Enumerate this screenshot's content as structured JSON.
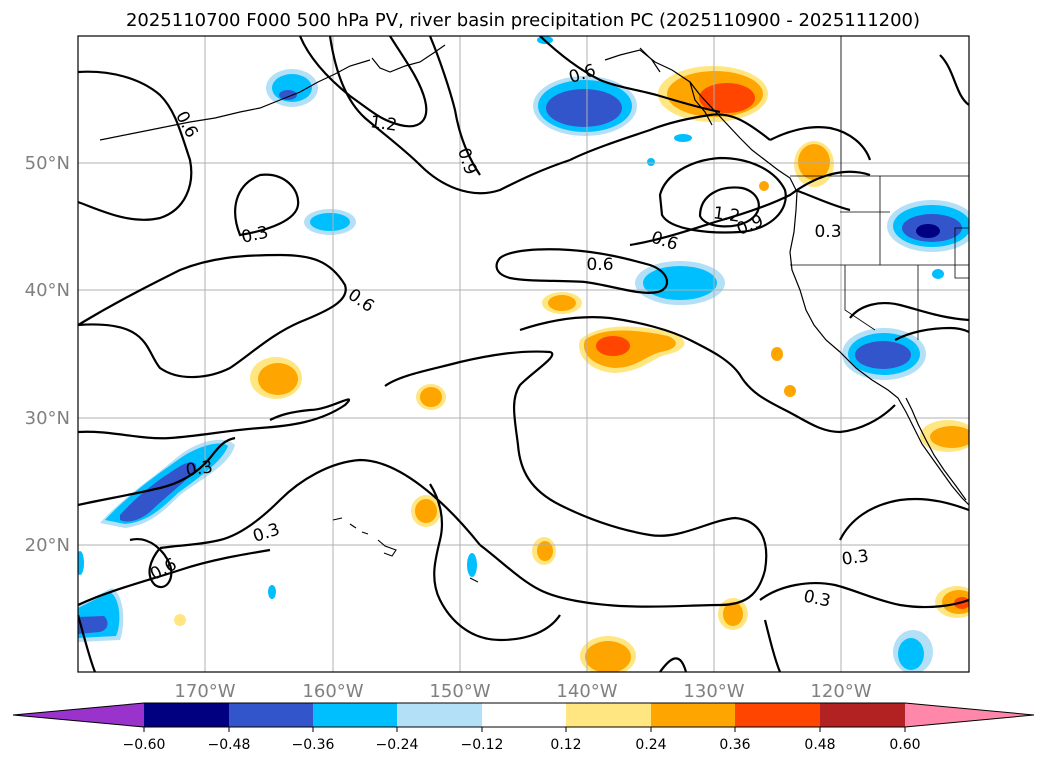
{
  "title": "2025110700 F000 500 hPa PV, river basin precipitation PC (2025110900 - 2025111200)",
  "map": {
    "lon_range": [
      -180,
      -110
    ],
    "lat_range": [
      10,
      60
    ],
    "lon_ticks": [
      "170°W",
      "160°W",
      "150°W",
      "140°W",
      "130°W",
      "120°W"
    ],
    "lat_ticks": [
      "50°N",
      "40°N",
      "30°N",
      "20°N"
    ]
  },
  "contour_labels": [
    "0.6",
    "1.2",
    "0.9",
    "0.6",
    "0.3",
    "1.2",
    "0.9",
    "0.6",
    "0.3",
    "0.6",
    "0.6",
    "0.3",
    "0.3",
    "0.6",
    "0.3",
    "0.3"
  ],
  "colorbar": {
    "ticks": [
      "−0.60",
      "−0.48",
      "−0.36",
      "−0.24",
      "−0.12",
      "0.12",
      "0.24",
      "0.36",
      "0.48",
      "0.60"
    ],
    "colors": [
      "#9933cc",
      "#000080",
      "#3355cc",
      "#00bfff",
      "#b3e0f7",
      "#ffffff",
      "#ffe680",
      "#ffa500",
      "#ff4500",
      "#b22222",
      "#ff88aa"
    ]
  },
  "precip_colors": {
    "light_blue": "#b3e0f7",
    "cyan": "#00bfff",
    "blue": "#3355cc",
    "navy": "#000080",
    "yellow": "#ffe680",
    "orange": "#ffa500",
    "red": "#ff4500"
  }
}
